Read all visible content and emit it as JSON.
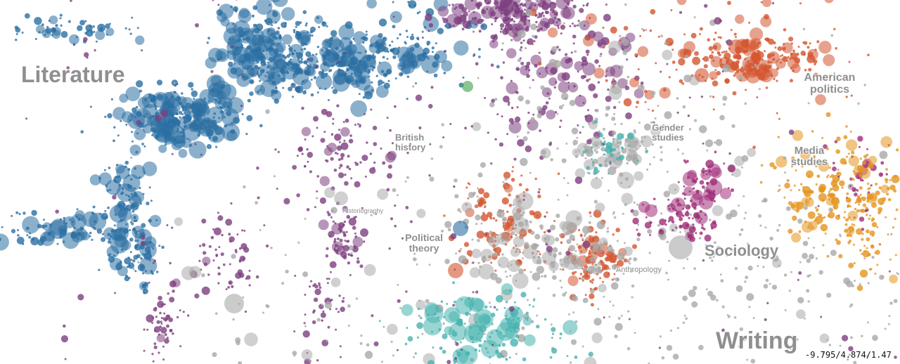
{
  "labels": {
    "literature": "Literature",
    "british_history": "British history",
    "historiography": "Historiography",
    "political_theory": "Political theory",
    "anthropology": "Anthropology",
    "gender_studies": "Gender studies",
    "american_politics": "American politics",
    "media_studies": "Media studies",
    "sociology": "Sociology",
    "writing": "Writing"
  },
  "coordinates": "-9.795/4.874/1.47"
}
